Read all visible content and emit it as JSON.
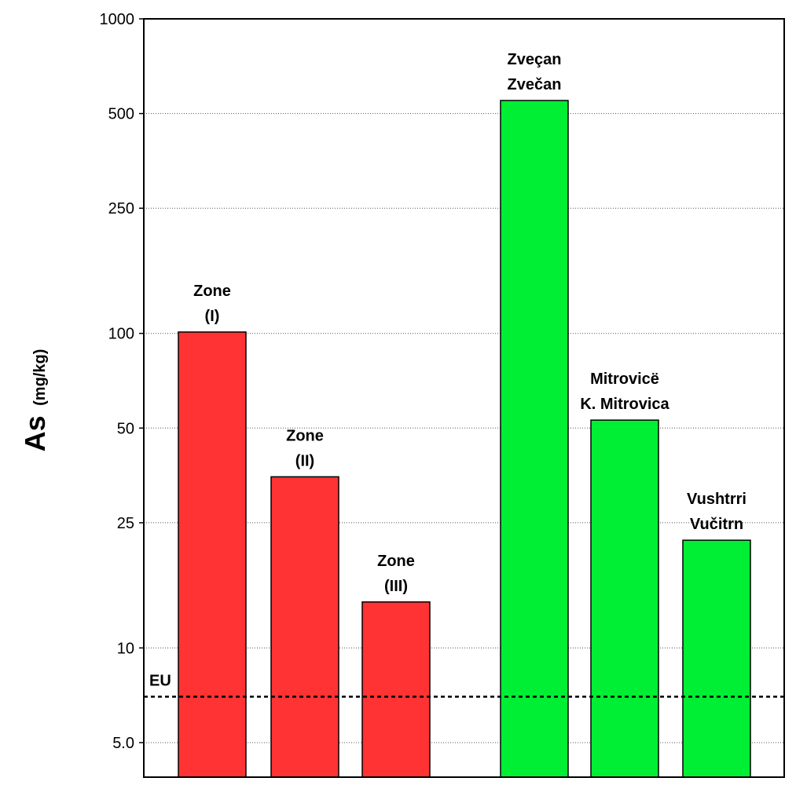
{
  "chart_data": {
    "type": "bar",
    "yscale": "log",
    "ylim": [
      4,
      1000
    ],
    "ylabel": {
      "main": "As",
      "unit": "(mg/kg)"
    },
    "yticks": [
      {
        "value": 5,
        "label": "5.0"
      },
      {
        "value": 10,
        "label": "10"
      },
      {
        "value": 25,
        "label": "25"
      },
      {
        "value": 50,
        "label": "50"
      },
      {
        "value": 100,
        "label": "100"
      },
      {
        "value": 250,
        "label": "250"
      },
      {
        "value": 500,
        "label": "500"
      },
      {
        "value": 1000,
        "label": "1000"
      }
    ],
    "grid": "horizontal-dotted",
    "bars": [
      {
        "label_lines": [
          "Zone",
          "(I)"
        ],
        "value": 101,
        "color": "#ff3333"
      },
      {
        "label_lines": [
          "Zone",
          "(II)"
        ],
        "value": 35,
        "color": "#ff3333"
      },
      {
        "label_lines": [
          "Zone",
          "(III)"
        ],
        "value": 14,
        "color": "#ff3333"
      },
      {
        "label_lines": [
          "Zveçan",
          "Zvečan"
        ],
        "value": 550,
        "color": "#00ee33"
      },
      {
        "label_lines": [
          "Mitrovicë",
          "K. Mitrovica"
        ],
        "value": 53,
        "color": "#00ee33"
      },
      {
        "label_lines": [
          "Vushtrri",
          "Vučitrn"
        ],
        "value": 22,
        "color": "#00ee33"
      }
    ],
    "reference_line": {
      "label": "EU",
      "value": 7,
      "style": "dashed"
    }
  }
}
